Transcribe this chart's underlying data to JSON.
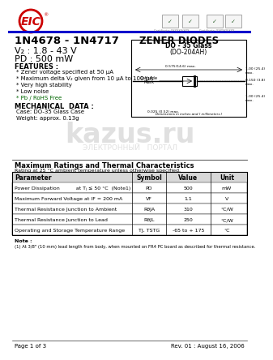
{
  "title_part": "1N4678 - 1N4717",
  "title_type": "ZENER DIODES",
  "vz": "V₂ : 1.8 - 43 V",
  "pd": "PD : 500 mW",
  "features_title": "FEATURES :",
  "features": [
    "* Zener voltage specified at 50 μA",
    "* Maximum delta V₂ given from 10 μA to 100 μA",
    "* Very high stability",
    "* Low noise",
    "* Pb / RoHS Free"
  ],
  "mech_title": "MECHANICAL  DATA :",
  "mech": [
    "Case: DO-35 Glass Case",
    "Weight: approx. 0.13g"
  ],
  "package_title1": "DO - 35 Glass",
  "package_title2": "(DO-204AH)",
  "dim_note": "Dimensions in inches and ( millimeters )",
  "table_title": "Maximum Ratings and Thermal Characteristics",
  "table_subtitle": "Rating at 25 °C ambient temperature unless otherwise specified.",
  "table_headers": [
    "Parameter",
    "Symbol",
    "Value",
    "Unit"
  ],
  "table_rows": [
    [
      "Power Dissipation          at Tⱼ ≤ 50 °C  (Note1)",
      "PD",
      "500",
      "mW"
    ],
    [
      "Maximum Forward Voltage at IF = 200 mA",
      "VF",
      "1.1",
      "V"
    ],
    [
      "Thermal Resistance Junction to Ambient",
      "RθJA",
      "310",
      "°C/W"
    ],
    [
      "Thermal Resistance Junction to Lead",
      "RθJL",
      "250",
      "°C/W"
    ],
    [
      "Operating and Storage Temperature Range",
      "TJ, TSTG",
      "-65 to + 175",
      "°C"
    ]
  ],
  "note": "Note :",
  "note_text": "(1) At 3/8\" (10 mm) lead length from body, when mounted on FR4 PC board as described for thermal resistance.",
  "footer_left": "Page 1 of 3",
  "footer_right": "Rev. 01 : August 16, 2006",
  "eic_color": "#cc0000",
  "blue_line_color": "#0000cc",
  "bg_color": "#ffffff"
}
